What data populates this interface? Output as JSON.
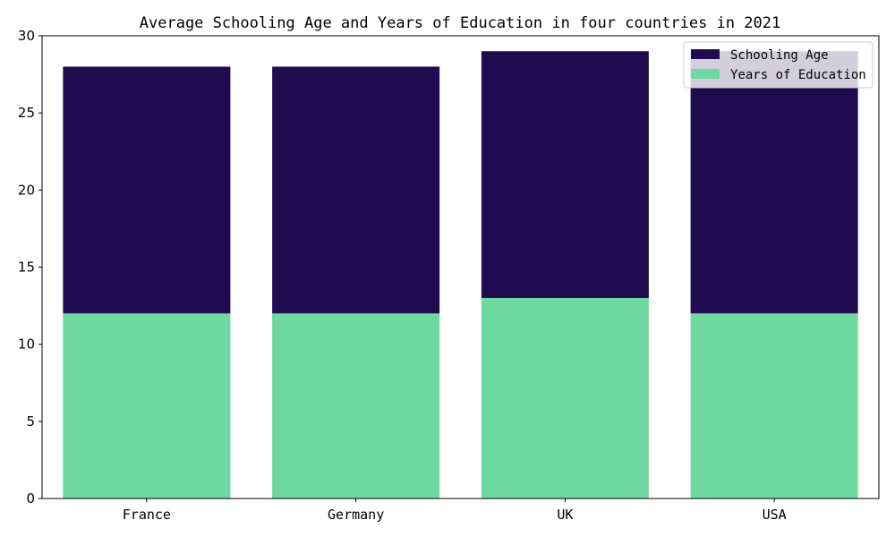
{
  "chart_data": {
    "type": "bar",
    "stacked": true,
    "title": "Average Schooling Age and Years of Education in four countries in 2021",
    "xlabel": "",
    "ylabel": "",
    "categories": [
      "France",
      "Germany",
      "UK",
      "USA"
    ],
    "ylim": [
      0,
      30
    ],
    "yticks": [
      "0",
      "5",
      "10",
      "15",
      "20",
      "25",
      "30"
    ],
    "grid": false,
    "legend_position": "top-right",
    "series": [
      {
        "name": "Years of Education",
        "values": [
          12,
          12,
          13,
          12
        ],
        "color": "#6fd89f"
      },
      {
        "name": "Schooling Age",
        "values": [
          16,
          16,
          16,
          17
        ],
        "color": "#200b50"
      }
    ],
    "legend_order": [
      "Schooling Age",
      "Years of Education"
    ]
  }
}
